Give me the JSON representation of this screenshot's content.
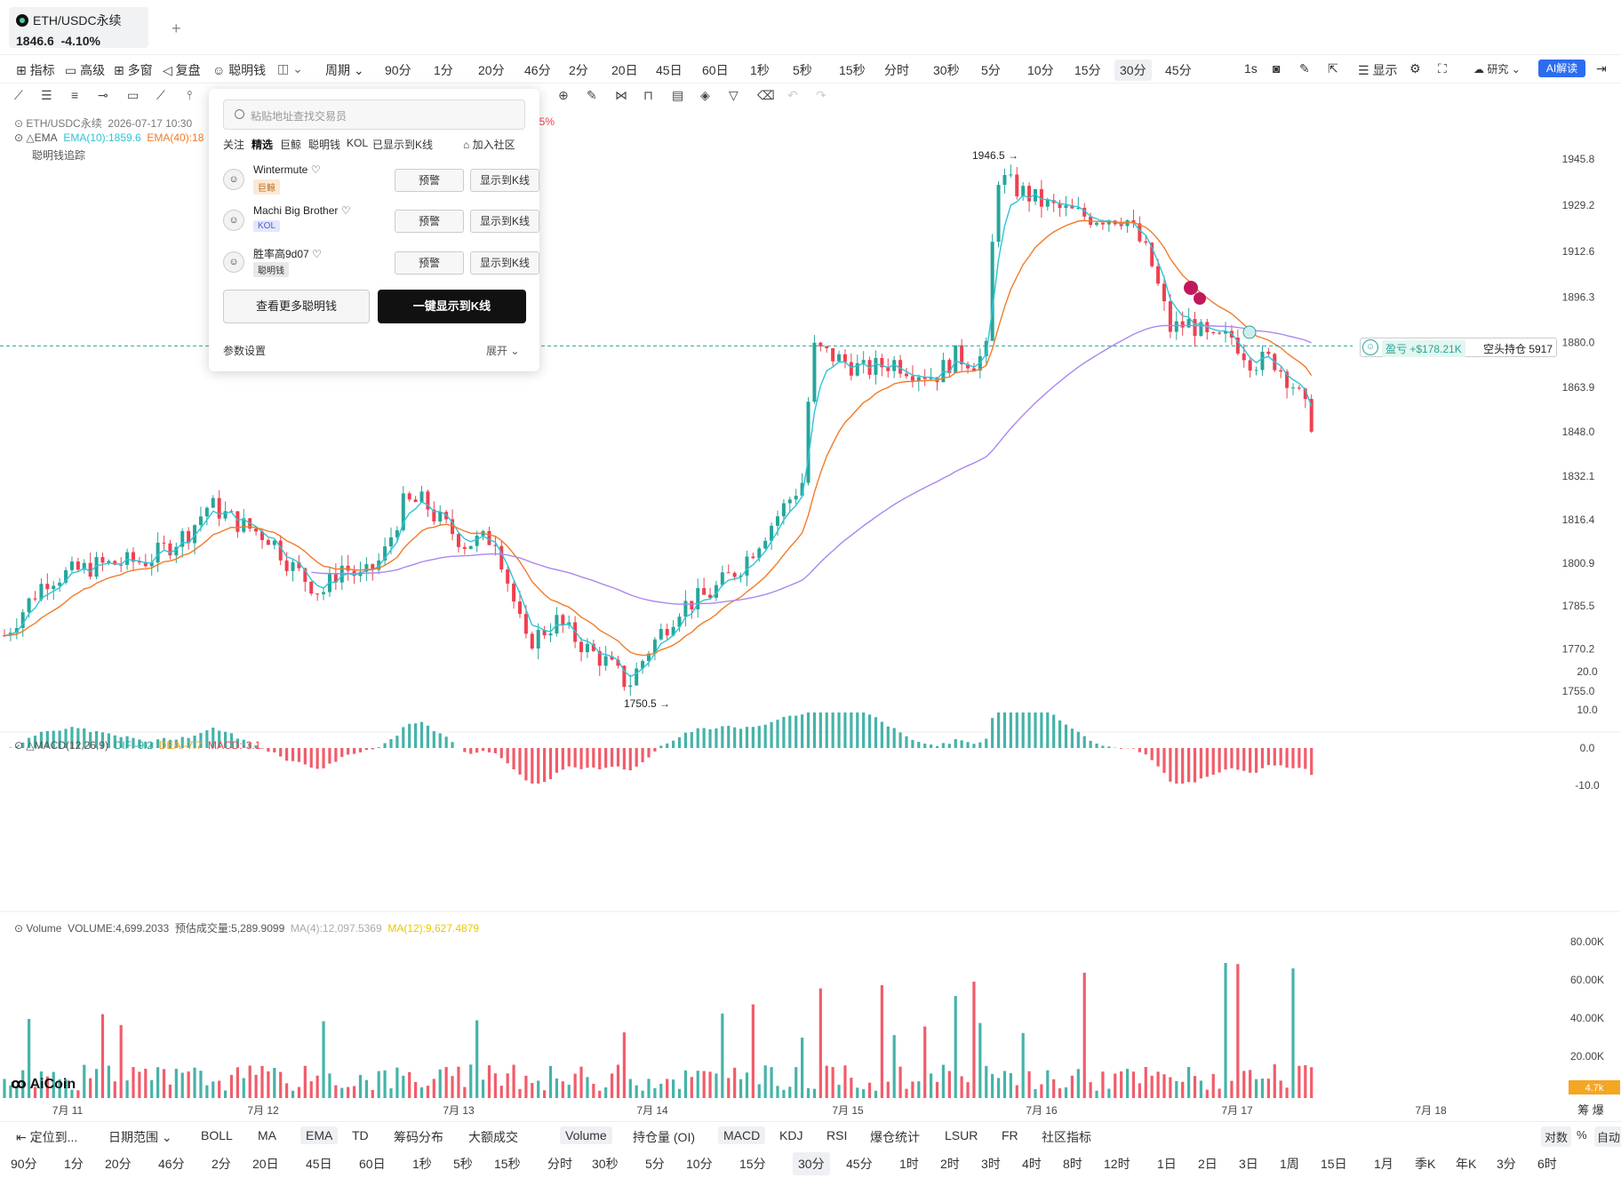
{
  "tab": {
    "symbol": "ETH/USDC永续",
    "price": "1846.6",
    "change": "-4.10%",
    "add": "+"
  },
  "toolbar": {
    "indicators": "指标",
    "advanced": "高级",
    "multi": "多窗",
    "replay": "复盘",
    "smart": "聪明钱",
    "period": "周期",
    "periods": [
      "90分",
      "1分",
      "20分",
      "46分",
      "2分",
      "20日",
      "45日",
      "60日",
      "1秒",
      "5秒",
      "15秒",
      "分时",
      "30秒",
      "5分",
      "10分",
      "15分",
      "30分",
      "45分"
    ],
    "active_period": "30分",
    "interval": "1s",
    "display": "显示",
    "research": "研究",
    "ai": "AI解读"
  },
  "info": {
    "title": "ETH/USDC永续",
    "datetime": "2026-07-17 10:30",
    "pct": "45%",
    "ema_label": "EMA",
    "ema10": "EMA(10):1859.6",
    "ema40": "EMA(40):18",
    "smart_trace": "聪明钱追踪",
    "macd_label": "MACD(12,26,9)",
    "dif": "DIF:-9.2",
    "dea": "DEA:-7.7",
    "macd": "MACD:-3.1",
    "vol_label": "Volume",
    "volume": "VOLUME:4,699.2033",
    "est": "预估成交量:5,289.9099",
    "ma4": "MA(4):12,097.5369",
    "ma12": "MA(12):9,627.4879"
  },
  "popup": {
    "search_placeholder": "粘贴地址查找交易员",
    "categories": [
      "关注",
      "精选",
      "巨鲸",
      "聪明钱",
      "KOL",
      "已显示到K线"
    ],
    "join": "加入社区",
    "traders": [
      {
        "name": "Wintermute",
        "tag": "巨鲸",
        "tag_color": "#b86a1a",
        "tag_bg": "#fbe8d4"
      },
      {
        "name": "Machi Big Brother",
        "tag": "KOL",
        "tag_color": "#4b5bd6",
        "tag_bg": "#e4e7fb"
      },
      {
        "name": "胜率高9d07",
        "tag": "聪明钱",
        "tag_color": "#333",
        "tag_bg": "#e8e8e8"
      }
    ],
    "alert": "预警",
    "show_k": "显示到K线",
    "more": "查看更多聪明钱",
    "one_key": "一键显示到K线",
    "params": "参数设置",
    "expand": "展开"
  },
  "chart_data": {
    "type": "candlestick",
    "price_axis": [
      "1945.8",
      "1929.2",
      "1912.6",
      "1896.3",
      "1880.0",
      "1863.9",
      "1848.0",
      "1832.1",
      "1816.4",
      "1800.9",
      "1785.5",
      "1770.2",
      "1755.0"
    ],
    "macd_axis": [
      "20.0",
      "10.0",
      "0.0",
      "-10.0"
    ],
    "volume_axis": [
      "80.00K",
      "60.00K",
      "40.00K",
      "20.00K"
    ],
    "current_volume": "4.7k",
    "dates": [
      "7月 11",
      "7月 12",
      "7月 13",
      "7月 14",
      "7月 15",
      "7月 16",
      "7月 17",
      "7月 18"
    ],
    "high_label": "1946.5",
    "low_label": "1750.5",
    "position": {
      "pnl": "盈亏 +$178.21K",
      "side": "空头持仓 5917"
    },
    "corner": [
      "筹",
      "爆"
    ]
  },
  "bottombar": {
    "locate": "定位到...",
    "range": "日期范围",
    "indicators": [
      "BOLL",
      "MA",
      "EMA",
      "TD",
      "筹码分布",
      "大额成交",
      "Volume",
      "持仓量 (OI)",
      "MACD",
      "KDJ",
      "RSI",
      "爆仓统计",
      "LSUR",
      "FR",
      "社区指标"
    ],
    "log": "对数",
    "pct": "%",
    "auto": "自动"
  },
  "periodbar": [
    "90分",
    "1分",
    "20分",
    "46分",
    "2分",
    "20日",
    "45日",
    "60日",
    "1秒",
    "5秒",
    "15秒",
    "分时",
    "30秒",
    "5分",
    "10分",
    "15分",
    "30分",
    "45分",
    "1时",
    "2时",
    "3时",
    "4时",
    "8时",
    "12时",
    "1日",
    "2日",
    "3日",
    "1周",
    "15日",
    "1月",
    "季K",
    "年K",
    "3分",
    "6时"
  ],
  "brand": "AiCoin",
  "colors": {
    "up": "#26a69a",
    "down": "#ef4050",
    "ema10": "#2ec4d6",
    "ema40": "#f07b2a",
    "ema_long": "#a987f0",
    "accent": "#2c6df0"
  }
}
